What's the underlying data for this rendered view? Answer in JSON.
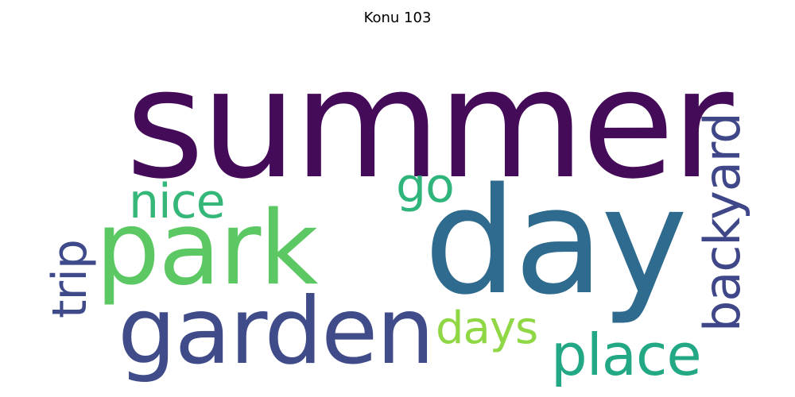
{
  "figure": {
    "title": "Konu 103"
  },
  "word_cloud": {
    "words": [
      {
        "id": "summer",
        "text": "summer",
        "color": "#440b59"
      },
      {
        "id": "day",
        "text": "day",
        "color": "#2f6b8e"
      },
      {
        "id": "park",
        "text": "park",
        "color": "#5cc863"
      },
      {
        "id": "garden",
        "text": "garden",
        "color": "#404c89"
      },
      {
        "id": "place",
        "text": "place",
        "color": "#22a884"
      },
      {
        "id": "nice",
        "text": "nice",
        "color": "#35b779"
      },
      {
        "id": "go",
        "text": "go",
        "color": "#2fb47c"
      },
      {
        "id": "days",
        "text": "days",
        "color": "#8fd744"
      },
      {
        "id": "trip",
        "text": "trip",
        "color": "#3e4a89"
      },
      {
        "id": "backyard",
        "text": "backyard",
        "color": "#3f4788"
      }
    ]
  }
}
